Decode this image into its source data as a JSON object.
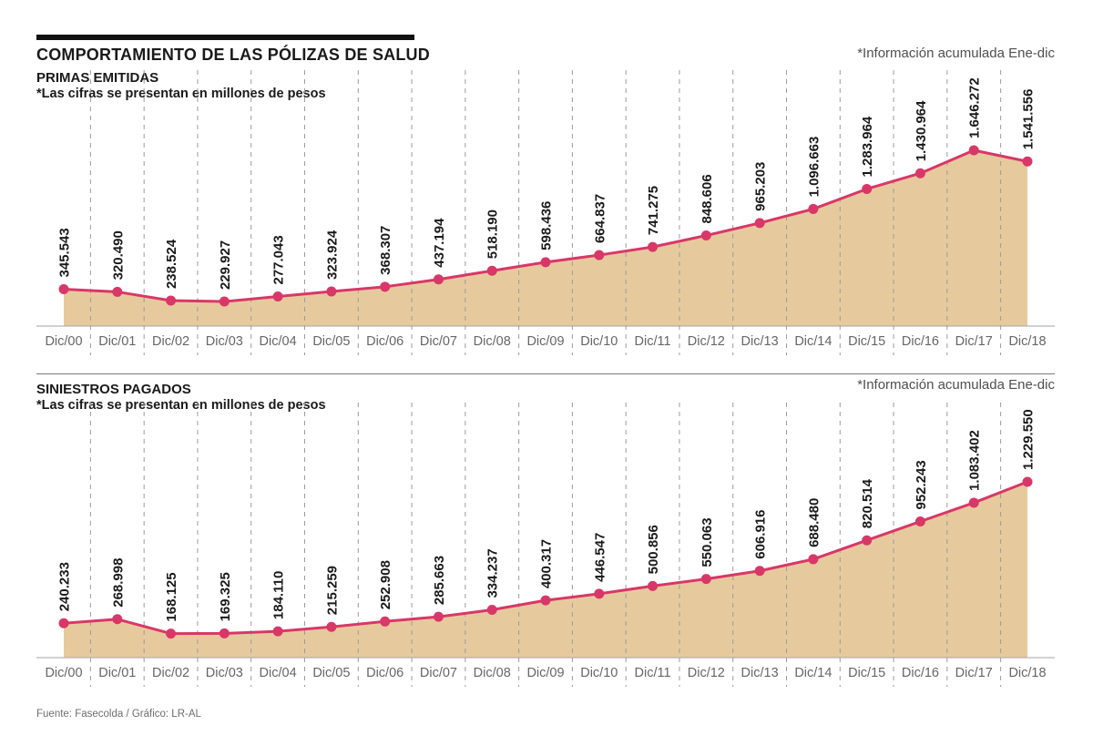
{
  "page": {
    "title": "COMPORTAMIENTO DE LAS PÓLIZAS DE SALUD",
    "source": "Fuente: Fasecolda / Gráfico: LR-AL"
  },
  "colors": {
    "line": "#d93768",
    "point": "#d93768",
    "fill": "#e6ca9e",
    "grid": "#9b9b9b",
    "axis": "#a5a5a5",
    "value_label": "#1a1a1a",
    "tick_label": "#666666"
  },
  "chart_data": [
    {
      "type": "area",
      "title": "PRIMAS EMITIDAS",
      "subtitle": "*Las cifras se presentan en millones de pesos",
      "note": "*Información acumulada Ene-dic",
      "categories": [
        "Dic/00",
        "Dic/01",
        "Dic/02",
        "Dic/03",
        "Dic/04",
        "Dic/05",
        "Dic/06",
        "Dic/07",
        "Dic/08",
        "Dic/09",
        "Dic/10",
        "Dic/11",
        "Dic/12",
        "Dic/13",
        "Dic/14",
        "Dic/15",
        "Dic/16",
        "Dic/17",
        "Dic/18"
      ],
      "values": [
        345543,
        320490,
        238524,
        229927,
        277043,
        323924,
        368307,
        437194,
        518190,
        598436,
        664837,
        741275,
        848606,
        965203,
        1096663,
        1283964,
        1430964,
        1646272,
        1541556
      ],
      "ylim": [
        0,
        1646272
      ],
      "grid": "vertical-dashed",
      "legend": "none"
    },
    {
      "type": "area",
      "title": "SINIESTROS PAGADOS",
      "subtitle": "*Las cifras se presentan en millones de pesos",
      "note": "*Información acumulada Ene-dic",
      "categories": [
        "Dic/00",
        "Dic/01",
        "Dic/02",
        "Dic/03",
        "Dic/04",
        "Dic/05",
        "Dic/06",
        "Dic/07",
        "Dic/08",
        "Dic/09",
        "Dic/10",
        "Dic/11",
        "Dic/12",
        "Dic/13",
        "Dic/14",
        "Dic/15",
        "Dic/16",
        "Dic/17",
        "Dic/18"
      ],
      "values": [
        240233,
        268998,
        168125,
        169325,
        184110,
        215259,
        252908,
        285663,
        334237,
        400317,
        446547,
        500856,
        550063,
        606916,
        688480,
        820514,
        952243,
        1083402,
        1229550
      ],
      "ylim": [
        0,
        1229550
      ],
      "grid": "vertical-dashed",
      "legend": "none"
    }
  ]
}
